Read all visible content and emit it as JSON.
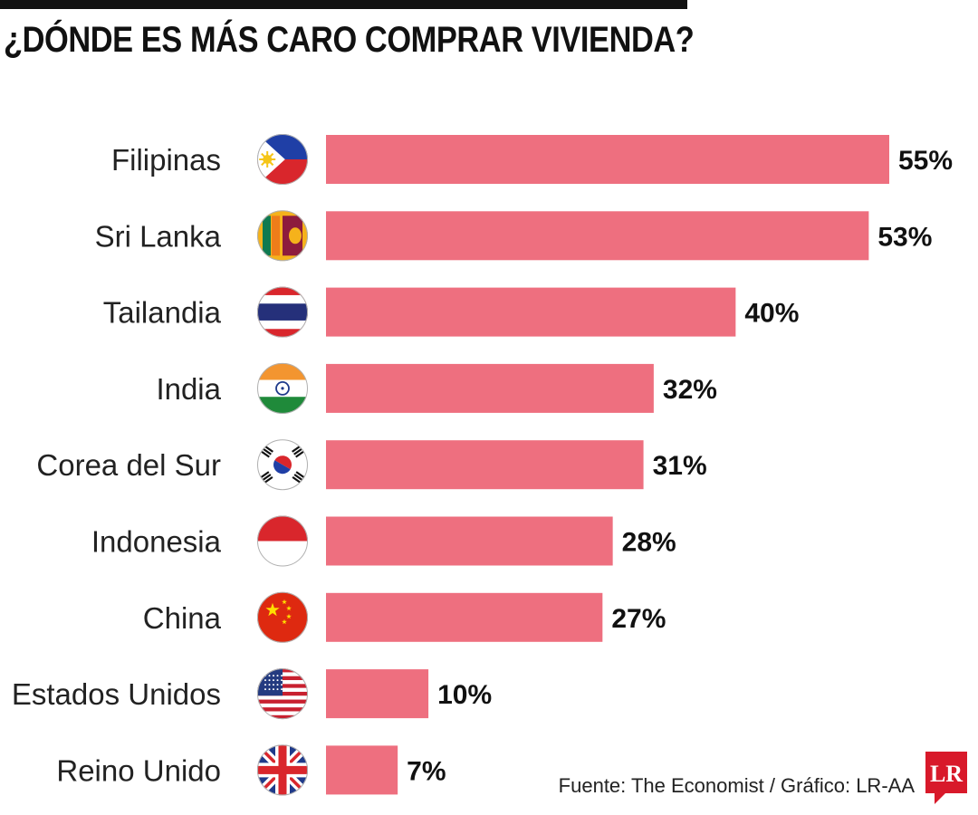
{
  "title": "¿DÓNDE ES MÁS CARO COMPRAR VIVIENDA?",
  "source": "Fuente: The Economist / Gráfico: LR-AA",
  "logo_text": "LR",
  "colors": {
    "bar": "#ee6f7f",
    "text": "#111111",
    "logo": "#d8192a"
  },
  "chart_data": {
    "type": "bar",
    "orientation": "horizontal",
    "categories": [
      "Filipinas",
      "Sri Lanka",
      "Tailandia",
      "India",
      "Corea del Sur",
      "Indonesia",
      "China",
      "Estados Unidos",
      "Reino Unido"
    ],
    "values": [
      55,
      53,
      40,
      32,
      31,
      28,
      27,
      10,
      7
    ],
    "value_labels": [
      "55%",
      "53%",
      "40%",
      "32%",
      "31%",
      "28%",
      "27%",
      "10%",
      "7%"
    ],
    "flags": [
      "philippines-flag-icon",
      "sri-lanka-flag-icon",
      "thailand-flag-icon",
      "india-flag-icon",
      "south-korea-flag-icon",
      "indonesia-flag-icon",
      "china-flag-icon",
      "usa-flag-icon",
      "uk-flag-icon"
    ],
    "title": "¿DÓNDE ES MÁS CARO COMPRAR VIVIENDA?",
    "xlabel": "",
    "ylabel": "",
    "xlim": [
      0,
      55
    ],
    "grid": false,
    "legend": "none"
  }
}
